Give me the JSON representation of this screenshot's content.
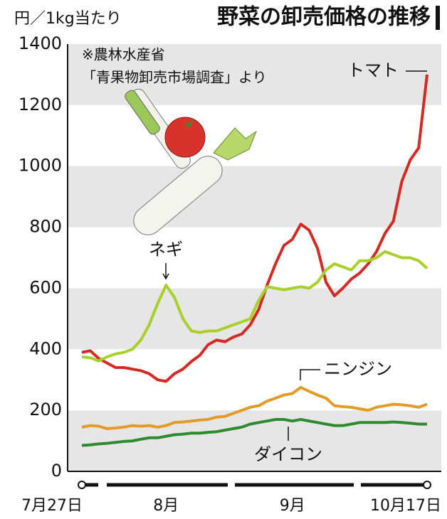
{
  "chart_data": {
    "type": "line",
    "title": "野菜の卸売価格の推移",
    "y_label": "円／1kg当たり",
    "note": [
      "※農林水産省",
      "「青果物卸売市場調査」より"
    ],
    "categories": [
      "7月27日",
      null,
      null,
      null,
      null,
      null,
      null,
      null,
      null,
      null,
      "8月",
      null,
      null,
      null,
      null,
      null,
      null,
      null,
      null,
      null,
      null,
      null,
      null,
      null,
      null,
      "9月",
      null,
      null,
      null,
      null,
      null,
      null,
      null,
      null,
      null,
      null,
      null,
      null,
      null,
      null,
      null,
      "10月17日"
    ],
    "series": [
      {
        "name": "トマト",
        "color": "#d42a24",
        "values": [
          390,
          395,
          370,
          355,
          340,
          340,
          335,
          330,
          320,
          300,
          295,
          320,
          335,
          360,
          380,
          415,
          430,
          425,
          440,
          450,
          480,
          530,
          610,
          680,
          740,
          760,
          810,
          790,
          730,
          620,
          575,
          600,
          630,
          650,
          680,
          720,
          780,
          820,
          950,
          1020,
          1060,
          1300
        ]
      },
      {
        "name": "ネギ",
        "color": "#a8cf2a",
        "values": [
          375,
          372,
          362,
          375,
          385,
          390,
          400,
          430,
          480,
          550,
          610,
          570,
          500,
          460,
          455,
          460,
          460,
          470,
          480,
          490,
          500,
          560,
          605,
          600,
          595,
          600,
          605,
          600,
          620,
          660,
          680,
          670,
          660,
          690,
          690,
          700,
          720,
          710,
          700,
          700,
          690,
          665
        ]
      },
      {
        "name": "ニンジン",
        "color": "#e39a26",
        "values": [
          145,
          150,
          148,
          140,
          142,
          145,
          150,
          148,
          150,
          145,
          150,
          160,
          162,
          165,
          168,
          170,
          178,
          180,
          190,
          200,
          210,
          215,
          230,
          240,
          250,
          255,
          275,
          262,
          250,
          240,
          215,
          212,
          210,
          205,
          200,
          210,
          215,
          220,
          218,
          215,
          210,
          220
        ]
      },
      {
        "name": "ダイコン",
        "color": "#2e8a2e",
        "values": [
          85,
          87,
          90,
          92,
          95,
          98,
          100,
          105,
          110,
          110,
          115,
          120,
          122,
          125,
          125,
          128,
          130,
          135,
          140,
          145,
          155,
          160,
          165,
          170,
          170,
          165,
          170,
          165,
          160,
          155,
          150,
          150,
          155,
          160,
          160,
          160,
          160,
          162,
          160,
          158,
          155,
          155
        ]
      }
    ],
    "ylim": [
      0,
      1400
    ],
    "yticks": [
      0,
      200,
      400,
      600,
      800,
      1000,
      1200,
      1400
    ],
    "grid": true
  }
}
